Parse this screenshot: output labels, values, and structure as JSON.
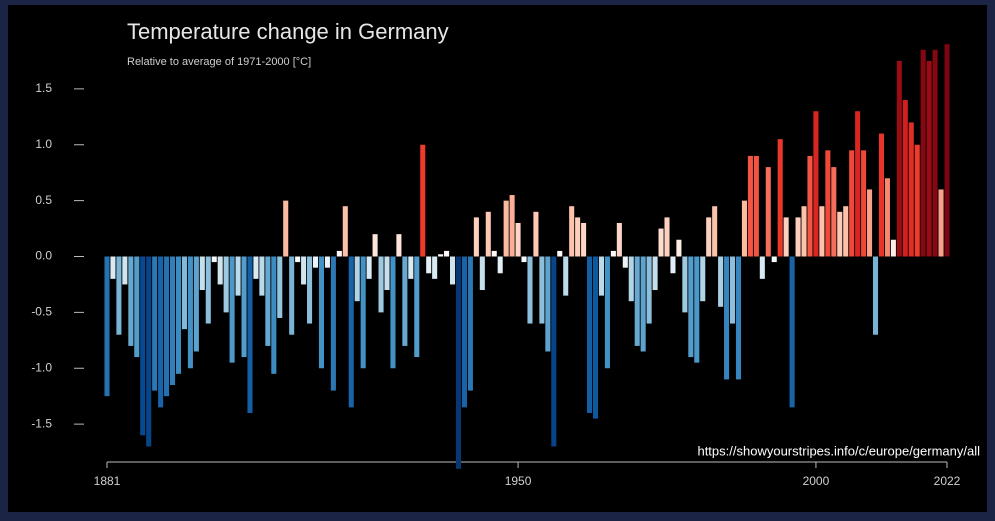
{
  "chart_data": {
    "type": "bar",
    "title": "Temperature change in Germany",
    "subtitle": "Relative to average of 1971-2000  [°C]",
    "source": "https://showyourstripes.info/c/europe/germany/all",
    "x": [
      1881,
      1882,
      1883,
      1884,
      1885,
      1886,
      1887,
      1888,
      1889,
      1890,
      1891,
      1892,
      1893,
      1894,
      1895,
      1896,
      1897,
      1898,
      1899,
      1900,
      1901,
      1902,
      1903,
      1904,
      1905,
      1906,
      1907,
      1908,
      1909,
      1910,
      1911,
      1912,
      1913,
      1914,
      1915,
      1916,
      1917,
      1918,
      1919,
      1920,
      1921,
      1922,
      1923,
      1924,
      1925,
      1926,
      1927,
      1928,
      1929,
      1930,
      1931,
      1932,
      1933,
      1934,
      1935,
      1936,
      1937,
      1938,
      1939,
      1940,
      1941,
      1942,
      1943,
      1944,
      1945,
      1946,
      1947,
      1948,
      1949,
      1950,
      1951,
      1952,
      1953,
      1954,
      1955,
      1956,
      1957,
      1958,
      1959,
      1960,
      1961,
      1962,
      1963,
      1964,
      1965,
      1966,
      1967,
      1968,
      1969,
      1970,
      1971,
      1972,
      1973,
      1974,
      1975,
      1976,
      1977,
      1978,
      1979,
      1980,
      1981,
      1982,
      1983,
      1984,
      1985,
      1986,
      1987,
      1988,
      1989,
      1990,
      1991,
      1992,
      1993,
      1994,
      1995,
      1996,
      1997,
      1998,
      1999,
      2000,
      2001,
      2002,
      2003,
      2004,
      2005,
      2006,
      2007,
      2008,
      2009,
      2010,
      2011,
      2012,
      2013,
      2014,
      2015,
      2016,
      2017,
      2018,
      2019,
      2020,
      2021,
      2022
    ],
    "values": [
      -1.25,
      -0.2,
      -0.7,
      -0.25,
      -0.8,
      -0.9,
      -1.6,
      -1.7,
      -1.2,
      -1.35,
      -1.25,
      -1.15,
      -1.05,
      -0.65,
      -1.0,
      -0.85,
      -0.3,
      -0.6,
      -0.05,
      -0.25,
      -0.5,
      -0.95,
      -0.35,
      -0.9,
      -1.4,
      -0.2,
      -0.35,
      -0.8,
      -1.05,
      -0.55,
      0.5,
      -0.7,
      -0.05,
      -0.25,
      -0.6,
      -0.1,
      -1.0,
      -0.1,
      -1.2,
      0.05,
      0.45,
      -1.35,
      -0.4,
      -1.0,
      -0.2,
      0.2,
      -0.5,
      -0.3,
      -1.0,
      0.2,
      -0.8,
      -0.2,
      -0.9,
      1.0,
      -0.15,
      -0.2,
      0.02,
      0.05,
      -0.25,
      -1.9,
      -1.35,
      -1.2,
      0.35,
      -0.3,
      0.4,
      0.05,
      -0.15,
      0.5,
      0.55,
      0.3,
      -0.05,
      -0.6,
      0.4,
      -0.6,
      -0.85,
      -1.7,
      0.05,
      -0.35,
      0.45,
      0.35,
      0.3,
      -1.4,
      -1.45,
      -0.35,
      -1.0,
      0.05,
      0.3,
      -0.1,
      -0.4,
      -0.8,
      -0.85,
      -0.6,
      -0.3,
      0.25,
      0.35,
      -0.15,
      0.15,
      -0.5,
      -0.9,
      -0.95,
      -0.4,
      0.35,
      0.45,
      -0.45,
      -1.1,
      -0.6,
      -1.1,
      0.5,
      0.9,
      0.9,
      -0.2,
      0.8,
      -0.05,
      1.05,
      0.35,
      -1.35,
      0.35,
      0.45,
      0.9,
      1.3,
      0.45,
      0.95,
      0.8,
      0.4,
      0.45,
      0.95,
      1.3,
      0.95,
      0.6,
      -0.7,
      1.1,
      0.7,
      0.15,
      1.75,
      1.4,
      1.2,
      1.0,
      1.85,
      1.75,
      1.85,
      0.6,
      1.9
    ],
    "color_stops": [
      "#08306b",
      "#08519c",
      "#4292c6",
      "#9ecae1",
      "#ffffff",
      "#fcbba1",
      "#ef3b2c",
      "#cb181d",
      "#67000d"
    ],
    "xlim": [
      1881,
      2022
    ],
    "xticks": [
      1881,
      1950,
      2000,
      2022
    ],
    "ylim": [
      -2.0,
      2.0
    ],
    "yticks": [
      {
        "value": -1.5,
        "label": "-1.5"
      },
      {
        "value": -1.0,
        "label": "-1.0"
      },
      -0.5,
      {
        "value": 0.0,
        "label": "0.0"
      },
      0.5,
      {
        "value": 1.0,
        "label": "1.0"
      },
      1.5
    ]
  }
}
